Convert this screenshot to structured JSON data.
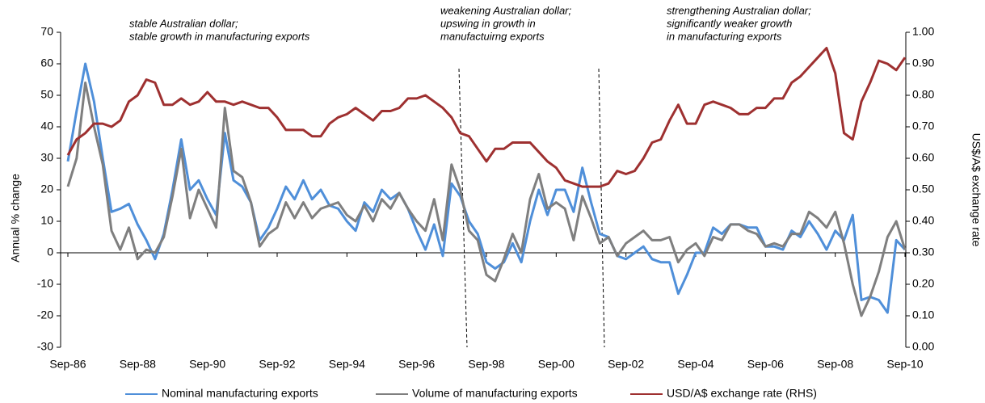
{
  "chart_data": {
    "type": "line",
    "annotations": [
      "stable Australian dollar;",
      "stable growth in manufacturing  exports",
      "weakening Australian dollar;",
      "upswing in growth in",
      "manufactuirng exports",
      "strengthening Australian dollar;",
      "significantly weaker growth",
      "in  manufacturing exports"
    ],
    "y_label": "Annual % change",
    "y2_label": "US$/A$ exchange rate",
    "categories": [
      "Sep-86",
      null,
      null,
      null,
      null,
      null,
      null,
      null,
      "Sep-88",
      null,
      null,
      null,
      null,
      null,
      null,
      null,
      "Sep-90",
      null,
      null,
      null,
      null,
      null,
      null,
      null,
      "Sep-92",
      null,
      null,
      null,
      null,
      null,
      null,
      null,
      "Sep-94",
      null,
      null,
      null,
      null,
      null,
      null,
      null,
      "Sep-96",
      null,
      null,
      null,
      null,
      null,
      null,
      null,
      "Sep-98",
      null,
      null,
      null,
      null,
      null,
      null,
      null,
      "Sep-00",
      null,
      null,
      null,
      null,
      null,
      null,
      null,
      "Sep-02",
      null,
      null,
      null,
      null,
      null,
      null,
      null,
      "Sep-04",
      null,
      null,
      null,
      null,
      null,
      null,
      null,
      "Sep-06",
      null,
      null,
      null,
      null,
      null,
      null,
      null,
      "Sep-08",
      null,
      null,
      null,
      null,
      null,
      null,
      null,
      "Sep-10"
    ],
    "ylim": [
      -30,
      70
    ],
    "yticks": [
      -30,
      -20,
      -10,
      0,
      10,
      20,
      30,
      40,
      50,
      60,
      70
    ],
    "y2lim": [
      0,
      1
    ],
    "y2ticks": [
      {
        "value": 0,
        "label": "0.00"
      },
      {
        "value": 0.1,
        "label": "0.10"
      },
      {
        "value": 0.2,
        "label": "0.20"
      },
      {
        "value": 0.3,
        "label": "0.30"
      },
      {
        "value": 0.4,
        "label": "0.40"
      },
      {
        "value": 0.5,
        "label": "0.50"
      },
      {
        "value": 0.6,
        "label": "0.60"
      },
      {
        "value": 0.7,
        "label": "0.70"
      },
      {
        "value": 0.8,
        "label": "0.80"
      },
      {
        "value": 0.9,
        "label": "0.90"
      },
      {
        "value": 1,
        "label": "1.00"
      }
    ],
    "series": [
      {
        "name": "Nominal manufacturing exports",
        "color": "#4f8fd9",
        "values": [
          29,
          45,
          60,
          48,
          30,
          13,
          14,
          15.5,
          9,
          4,
          -2,
          6,
          20,
          36,
          20,
          23,
          17,
          12,
          38,
          23,
          21,
          16,
          4,
          8,
          14,
          21,
          17,
          23,
          17,
          20,
          15,
          14,
          10,
          7,
          16,
          13,
          20,
          17,
          19,
          14,
          7,
          1,
          9,
          -1,
          22,
          18,
          10,
          6,
          -3,
          -5,
          -3,
          3,
          -3,
          10,
          20,
          12,
          20,
          20,
          13,
          27,
          16,
          6,
          5,
          -1,
          -2,
          0,
          2,
          -2,
          -3,
          -3,
          -13,
          -7,
          0,
          0,
          8,
          6,
          9,
          9,
          8,
          8,
          2,
          2,
          1,
          7,
          5,
          10,
          6,
          1,
          7,
          4,
          12,
          -15,
          -14,
          -15,
          -19,
          4,
          1
        ]
      },
      {
        "name": "Volume of manufacturing exports",
        "color": "#7f7f7f",
        "values": [
          21,
          30,
          54,
          40,
          28,
          7,
          1,
          8,
          -2,
          1,
          0,
          5,
          18,
          33,
          11,
          20,
          14,
          8,
          46,
          26,
          24,
          16,
          2,
          6,
          8,
          16,
          11,
          16,
          11,
          14,
          15,
          16,
          12,
          10,
          15,
          10,
          17,
          14,
          19,
          14,
          10,
          7,
          17,
          4,
          28,
          20,
          7,
          4,
          -7,
          -9,
          -2,
          6,
          0,
          17,
          25,
          14,
          16,
          14,
          4,
          18,
          11,
          3,
          5,
          -1,
          3,
          5,
          7,
          4,
          4,
          5,
          -3,
          1,
          3,
          -1,
          5,
          4,
          9,
          9,
          7,
          6,
          2,
          3,
          2,
          6,
          6,
          13,
          11,
          8,
          13,
          3,
          -10,
          -20,
          -14,
          -6,
          5,
          10,
          1
        ]
      },
      {
        "name": "USD/A$ exchange rate (RHS)",
        "color": "#9e3030",
        "axis": "y2",
        "values": [
          0.61,
          0.66,
          0.68,
          0.71,
          0.71,
          0.7,
          0.72,
          0.78,
          0.8,
          0.85,
          0.84,
          0.77,
          0.77,
          0.79,
          0.77,
          0.78,
          0.81,
          0.78,
          0.78,
          0.77,
          0.78,
          0.77,
          0.76,
          0.76,
          0.73,
          0.69,
          0.69,
          0.69,
          0.67,
          0.67,
          0.71,
          0.73,
          0.74,
          0.76,
          0.74,
          0.72,
          0.75,
          0.75,
          0.76,
          0.79,
          0.79,
          0.8,
          0.78,
          0.76,
          0.73,
          0.68,
          0.67,
          0.63,
          0.59,
          0.63,
          0.63,
          0.65,
          0.65,
          0.65,
          0.62,
          0.59,
          0.57,
          0.53,
          0.52,
          0.51,
          0.51,
          0.51,
          0.52,
          0.56,
          0.55,
          0.56,
          0.6,
          0.65,
          0.66,
          0.72,
          0.77,
          0.71,
          0.71,
          0.77,
          0.78,
          0.77,
          0.76,
          0.74,
          0.74,
          0.76,
          0.76,
          0.79,
          0.79,
          0.84,
          0.86,
          0.89,
          0.92,
          0.95,
          0.87,
          0.68,
          0.66,
          0.78,
          0.84,
          0.91,
          0.9,
          0.88,
          0.92
        ]
      }
    ]
  }
}
